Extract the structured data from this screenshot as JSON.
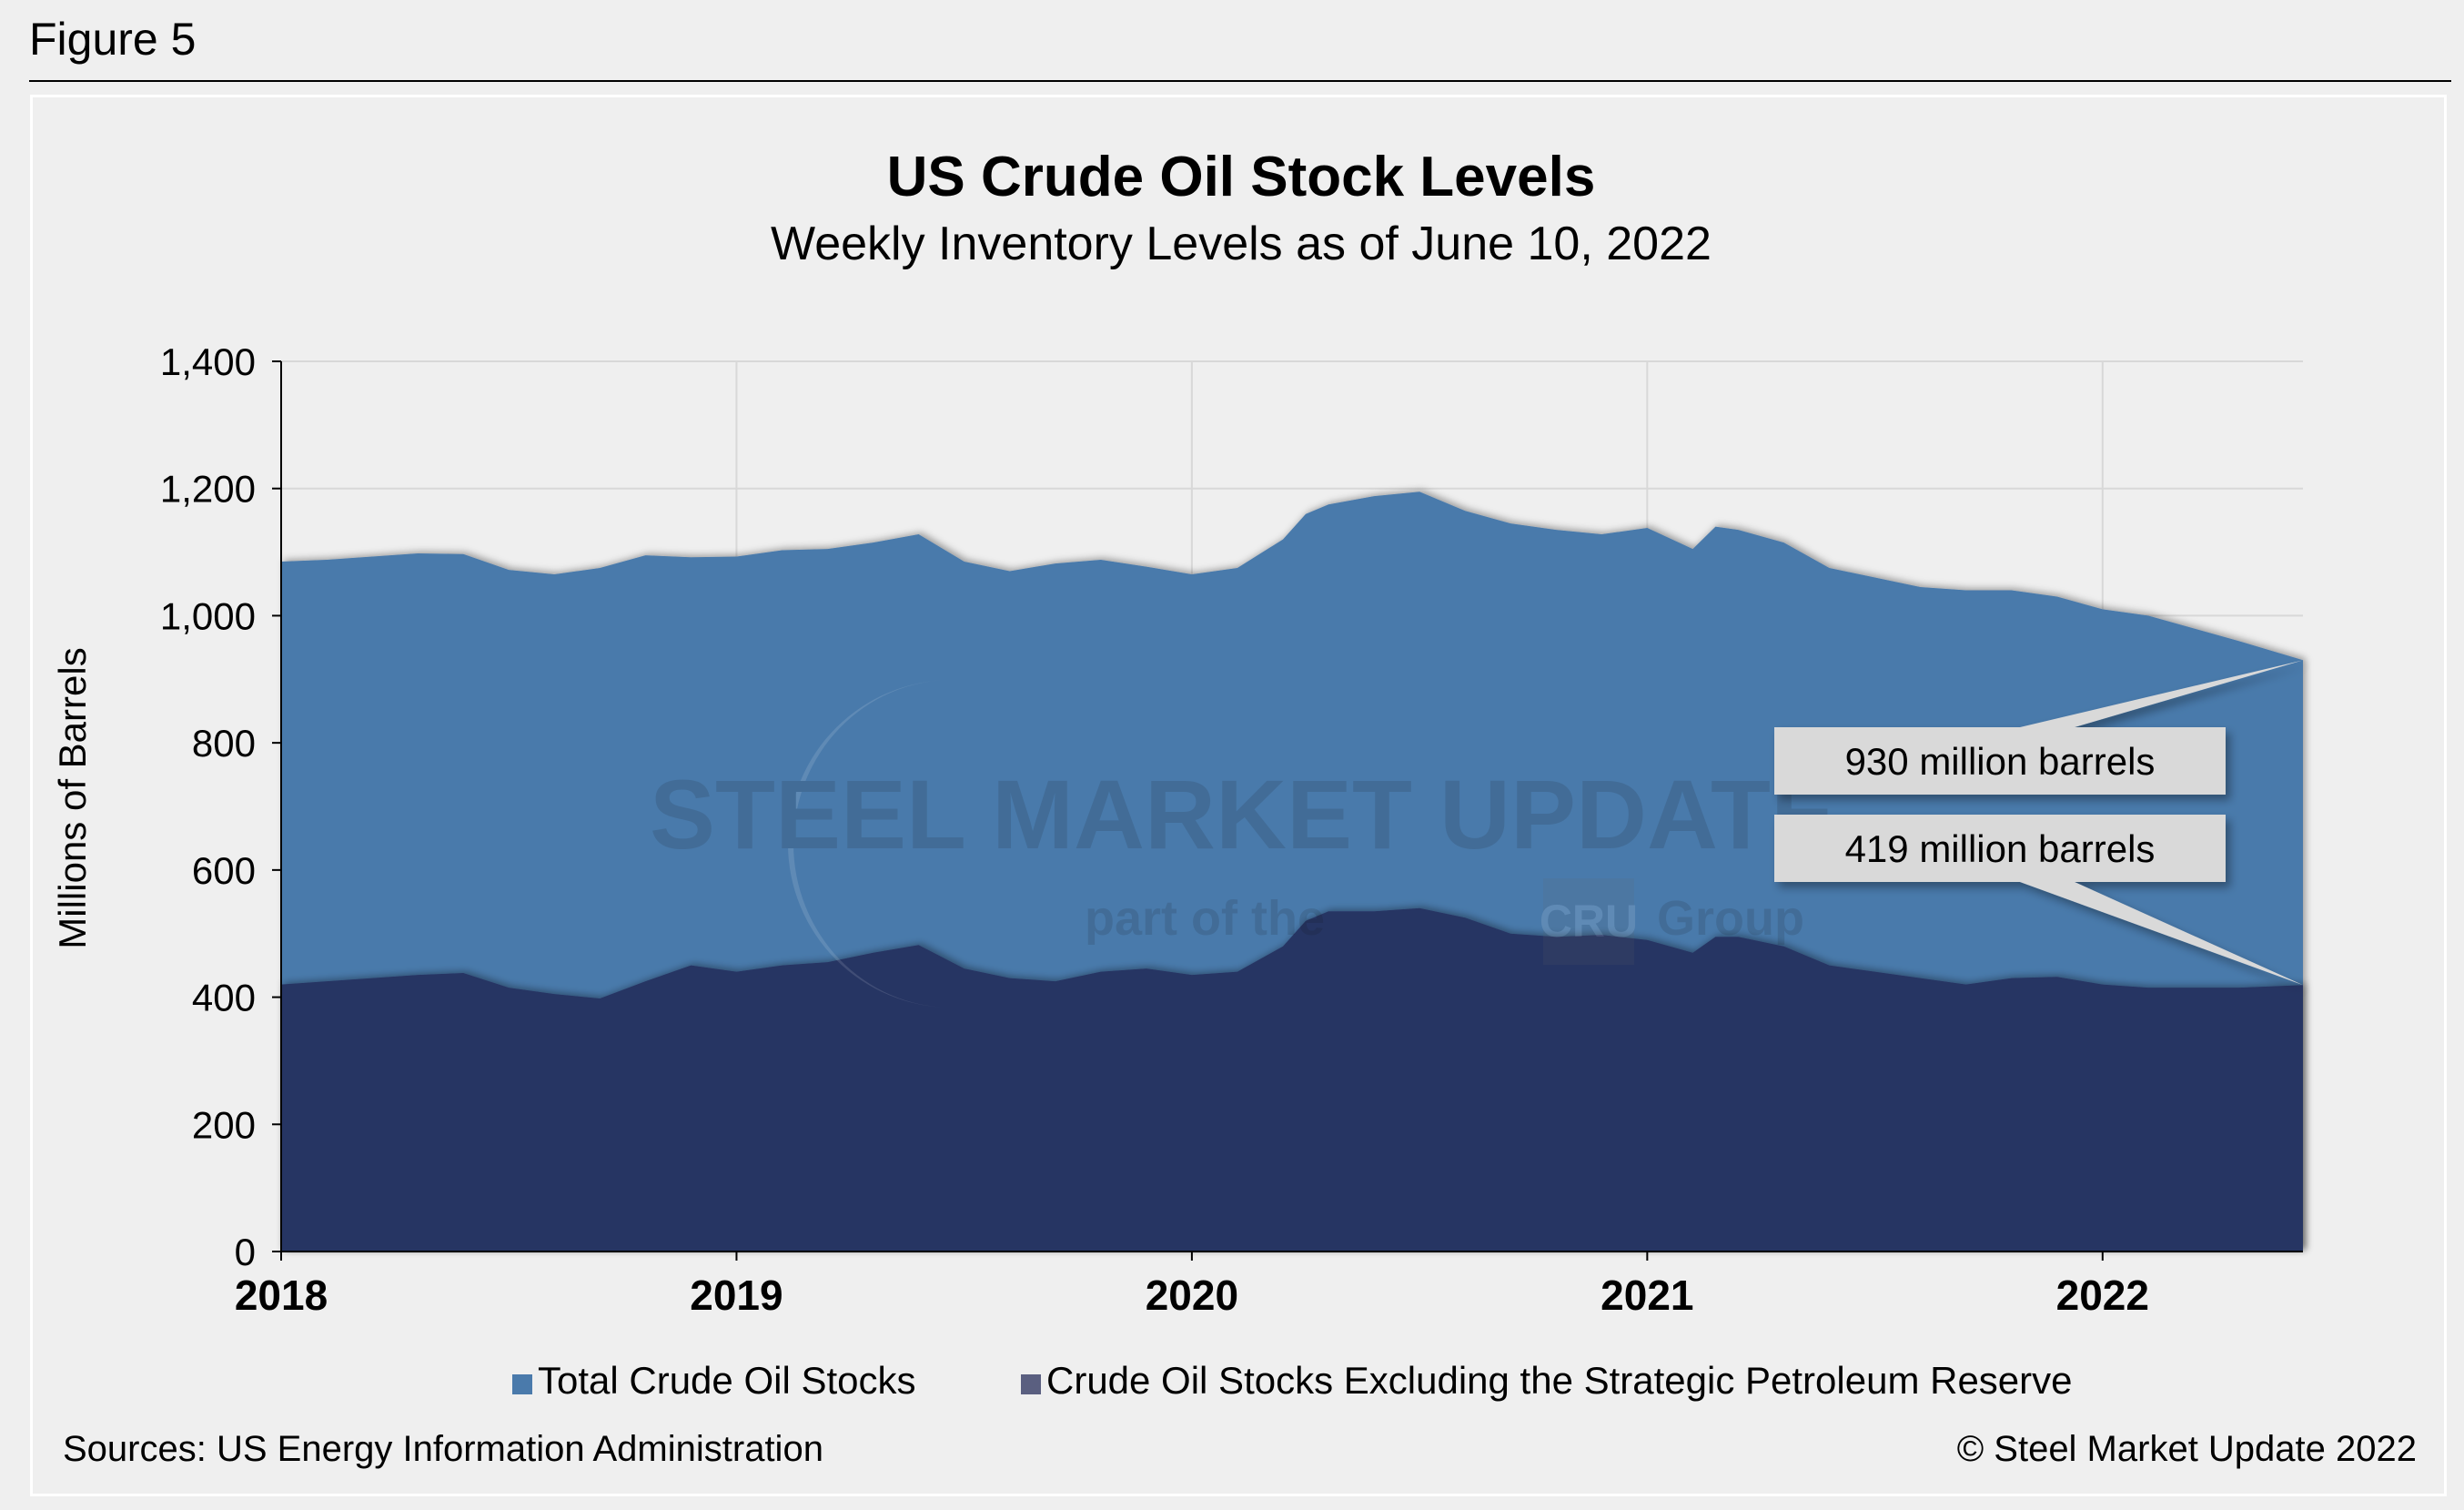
{
  "figure_label": "Figure 5",
  "sources": "Sources: US Energy Information Administration",
  "copyright": "© Steel Market Update 2022",
  "watermark": {
    "main": "STEEL MARKET UPDATE",
    "sub_pre": "part of the",
    "sub_logo": "CRU",
    "sub_post": "Group"
  },
  "colors": {
    "total": "#4a7aab",
    "excl_spr": "#283463",
    "background": "#efefef",
    "grid": "#d8d8d8",
    "callout": "#d9d9d9"
  },
  "chart_data": {
    "type": "area",
    "title": "US Crude Oil Stock Levels",
    "subtitle": "Weekly Inventory Levels as of June 10, 2022",
    "ylabel": "Millions of Barrels",
    "xlabel": "",
    "ylim": [
      0,
      1400
    ],
    "xlim": [
      2018.0,
      2022.44
    ],
    "yticks": [
      0,
      200,
      400,
      600,
      800,
      1000,
      1200,
      1400
    ],
    "ytick_labels": [
      "0",
      "200",
      "400",
      "600",
      "800",
      "1,000",
      "1,200",
      "1,400"
    ],
    "xticks": [
      2018,
      2019,
      2020,
      2021,
      2022
    ],
    "xtick_labels": [
      "2018",
      "2019",
      "2020",
      "2021",
      "2022"
    ],
    "grid": true,
    "legend_position": "bottom",
    "series": [
      {
        "name": "Total Crude Oil Stocks",
        "x": [
          2018.0,
          2018.1,
          2018.2,
          2018.3,
          2018.4,
          2018.5,
          2018.6,
          2018.7,
          2018.8,
          2018.9,
          2019.0,
          2019.1,
          2019.2,
          2019.3,
          2019.4,
          2019.5,
          2019.6,
          2019.7,
          2019.8,
          2019.9,
          2020.0,
          2020.1,
          2020.2,
          2020.25,
          2020.3,
          2020.4,
          2020.5,
          2020.6,
          2020.7,
          2020.8,
          2020.9,
          2021.0,
          2021.1,
          2021.15,
          2021.2,
          2021.3,
          2021.4,
          2021.5,
          2021.6,
          2021.7,
          2021.8,
          2021.9,
          2022.0,
          2022.1,
          2022.2,
          2022.3,
          2022.44
        ],
        "values": [
          1085,
          1088,
          1093,
          1098,
          1097,
          1072,
          1065,
          1075,
          1095,
          1092,
          1093,
          1103,
          1105,
          1115,
          1128,
          1085,
          1070,
          1082,
          1088,
          1077,
          1065,
          1075,
          1120,
          1160,
          1175,
          1188,
          1195,
          1165,
          1145,
          1135,
          1128,
          1138,
          1105,
          1140,
          1135,
          1115,
          1075,
          1060,
          1045,
          1040,
          1040,
          1030,
          1010,
          1000,
          980,
          960,
          930
        ]
      },
      {
        "name": "Crude Oil Stocks Excluding the Strategic Petroleum Reserve",
        "x": [
          2018.0,
          2018.1,
          2018.2,
          2018.3,
          2018.4,
          2018.5,
          2018.6,
          2018.7,
          2018.8,
          2018.9,
          2019.0,
          2019.1,
          2019.2,
          2019.3,
          2019.4,
          2019.5,
          2019.6,
          2019.7,
          2019.8,
          2019.9,
          2020.0,
          2020.1,
          2020.2,
          2020.25,
          2020.3,
          2020.4,
          2020.5,
          2020.6,
          2020.7,
          2020.8,
          2020.9,
          2021.0,
          2021.1,
          2021.15,
          2021.2,
          2021.3,
          2021.4,
          2021.5,
          2021.6,
          2021.7,
          2021.8,
          2021.9,
          2022.0,
          2022.1,
          2022.2,
          2022.3,
          2022.44
        ],
        "values": [
          420,
          425,
          430,
          435,
          438,
          415,
          405,
          398,
          425,
          450,
          440,
          450,
          455,
          470,
          482,
          445,
          430,
          425,
          440,
          445,
          435,
          440,
          480,
          520,
          535,
          535,
          540,
          525,
          500,
          495,
          498,
          490,
          470,
          495,
          495,
          480,
          450,
          440,
          430,
          420,
          430,
          432,
          420,
          415,
          415,
          415,
          419
        ]
      }
    ],
    "annotations": [
      {
        "text": "930 million barrels",
        "x": 2022.44,
        "y": 930
      },
      {
        "text": "419 million barrels",
        "x": 2022.44,
        "y": 419
      }
    ]
  }
}
